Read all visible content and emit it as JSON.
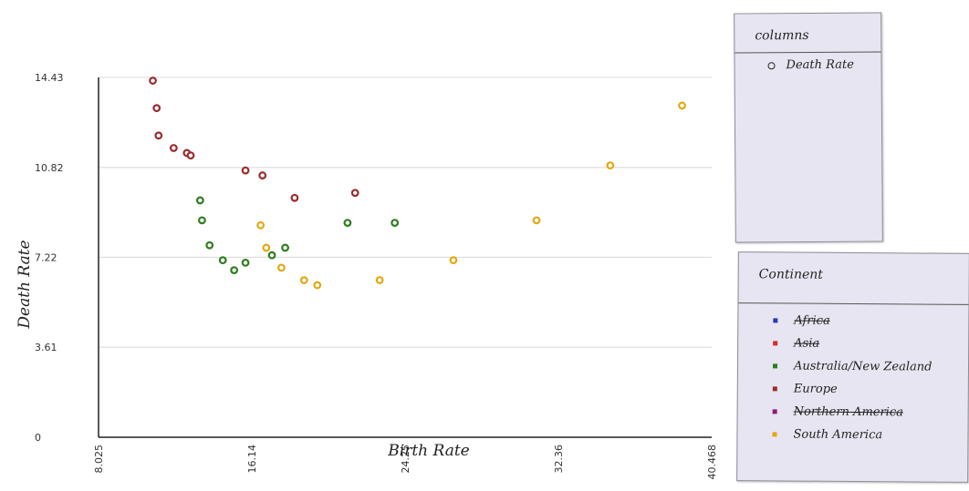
{
  "chart_data": {
    "type": "scatter",
    "xlabel": "Birth Rate",
    "ylabel": "Death Rate",
    "xlim": [
      8.025,
      40.468
    ],
    "ylim": [
      0,
      14.43
    ],
    "x_ticks": [
      "8.025",
      "16.14",
      "24.25",
      "32.36",
      "40.468"
    ],
    "y_ticks": [
      "0",
      "3.61",
      "7.22",
      "10.82",
      "14.43"
    ],
    "grid": true,
    "series": [
      {
        "name": "Europe",
        "color": "#9b2c2c",
        "points": [
          {
            "x": 10.9,
            "y": 14.3
          },
          {
            "x": 11.1,
            "y": 13.2
          },
          {
            "x": 11.2,
            "y": 12.1
          },
          {
            "x": 12.0,
            "y": 11.6
          },
          {
            "x": 12.7,
            "y": 11.4
          },
          {
            "x": 12.9,
            "y": 11.3
          },
          {
            "x": 15.8,
            "y": 10.7
          },
          {
            "x": 16.7,
            "y": 10.5
          },
          {
            "x": 18.4,
            "y": 9.6
          },
          {
            "x": 21.6,
            "y": 9.8
          }
        ]
      },
      {
        "name": "Australia/New Zealand",
        "color": "#2e7d1f",
        "points": [
          {
            "x": 13.4,
            "y": 9.5
          },
          {
            "x": 13.5,
            "y": 8.7
          },
          {
            "x": 13.9,
            "y": 7.7
          },
          {
            "x": 14.6,
            "y": 7.1
          },
          {
            "x": 15.2,
            "y": 6.7
          },
          {
            "x": 15.8,
            "y": 7.0
          },
          {
            "x": 17.2,
            "y": 7.3
          },
          {
            "x": 17.9,
            "y": 7.6
          },
          {
            "x": 21.2,
            "y": 8.6
          },
          {
            "x": 23.7,
            "y": 8.6
          }
        ]
      },
      {
        "name": "South America",
        "color": "#e3a812",
        "points": [
          {
            "x": 16.6,
            "y": 8.5
          },
          {
            "x": 16.9,
            "y": 7.6
          },
          {
            "x": 17.7,
            "y": 6.8
          },
          {
            "x": 18.9,
            "y": 6.3
          },
          {
            "x": 19.6,
            "y": 6.1
          },
          {
            "x": 22.9,
            "y": 6.3
          },
          {
            "x": 26.8,
            "y": 7.1
          },
          {
            "x": 31.2,
            "y": 8.7
          },
          {
            "x": 35.1,
            "y": 10.9
          },
          {
            "x": 38.9,
            "y": 13.3
          }
        ]
      }
    ]
  },
  "columns_panel": {
    "title": "columns",
    "items": [
      {
        "label": "Death Rate"
      }
    ]
  },
  "continent_panel": {
    "title": "Continent",
    "items": [
      {
        "label": "Africa",
        "color": "#2a3bb0",
        "active": false
      },
      {
        "label": "Asia",
        "color": "#d42a2a",
        "active": false
      },
      {
        "label": "Australia/New Zealand",
        "color": "#2e7d1f",
        "active": true
      },
      {
        "label": "Europe",
        "color": "#9b2c2c",
        "active": true
      },
      {
        "label": "Northern America",
        "color": "#8b1e7a",
        "active": false
      },
      {
        "label": "South America",
        "color": "#e3a812",
        "active": true
      }
    ]
  }
}
